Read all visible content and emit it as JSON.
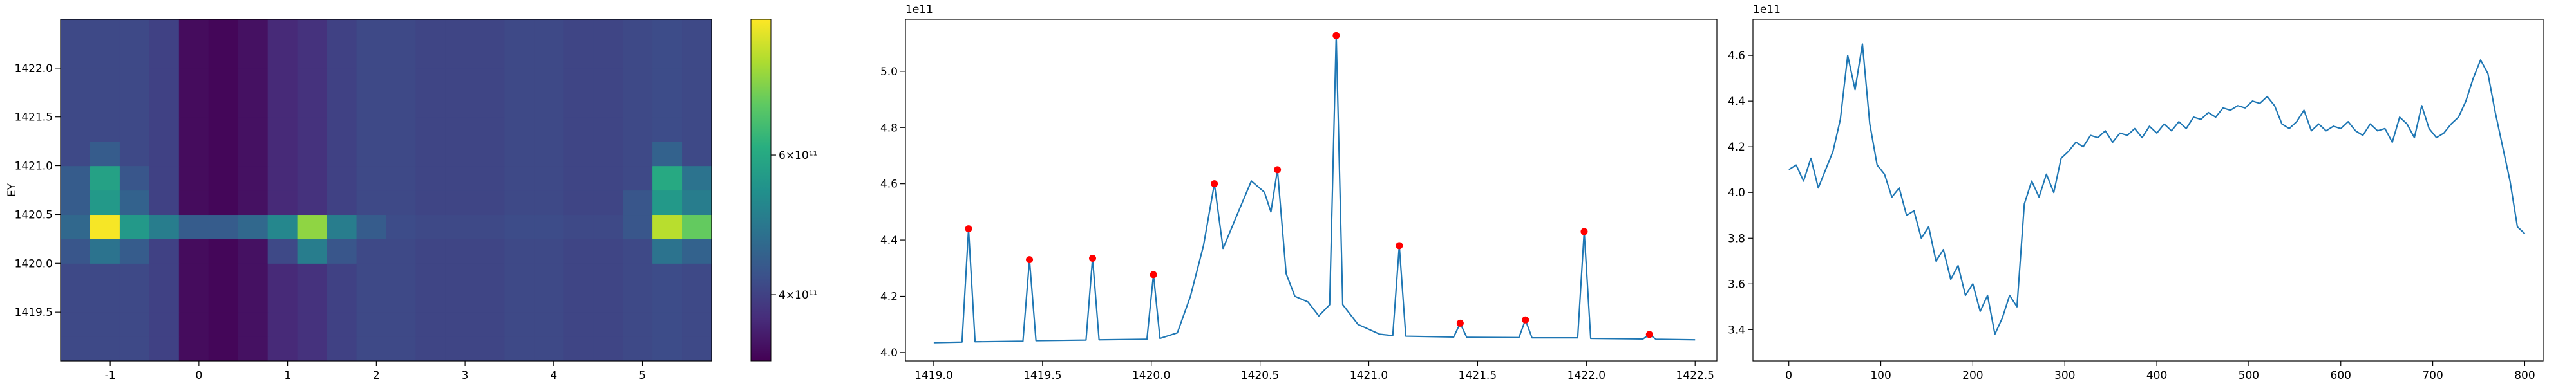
{
  "chart_data": [
    {
      "type": "heatmap",
      "ylabel": "EY",
      "colormap": "viridis",
      "xlim": [
        -1.56,
        5.78
      ],
      "ylim": [
        1419.0,
        1422.5
      ],
      "xticks": [
        -1,
        0,
        1,
        2,
        3,
        4,
        5
      ],
      "yticks": [
        1419.5,
        {
          "value": 1420,
          "label": "1420.0"
        },
        1420.5,
        {
          "value": 1421,
          "label": "1421.0"
        },
        1421.5,
        {
          "value": 1422,
          "label": "1422.0"
        }
      ],
      "colorbar": {
        "scale": "log",
        "lim": [
          330000000000.0,
          890000000000.0
        ],
        "ticks": [
          {
            "value": 400000000000.0,
            "label": "4×10¹¹"
          },
          {
            "value": 600000000000.0,
            "label": "6×10¹¹"
          }
        ]
      },
      "z": [
        [
          410000000000.0,
          410000000000.0,
          410000000000.0,
          400000000000.0,
          340000000000.0,
          335000000000.0,
          345000000000.0,
          370000000000.0,
          380000000000.0,
          400000000000.0,
          410000000000.0,
          410000000000.0,
          405000000000.0,
          405000000000.0,
          405000000000.0,
          410000000000.0,
          410000000000.0,
          405000000000.0,
          405000000000.0,
          410000000000.0,
          415000000000.0,
          410000000000.0
        ],
        [
          410000000000.0,
          410000000000.0,
          410000000000.0,
          400000000000.0,
          340000000000.0,
          335000000000.0,
          345000000000.0,
          370000000000.0,
          380000000000.0,
          400000000000.0,
          410000000000.0,
          410000000000.0,
          405000000000.0,
          405000000000.0,
          405000000000.0,
          410000000000.0,
          410000000000.0,
          405000000000.0,
          405000000000.0,
          410000000000.0,
          415000000000.0,
          410000000000.0
        ],
        [
          410000000000.0,
          410000000000.0,
          410000000000.0,
          400000000000.0,
          340000000000.0,
          335000000000.0,
          345000000000.0,
          370000000000.0,
          380000000000.0,
          400000000000.0,
          410000000000.0,
          410000000000.0,
          405000000000.0,
          405000000000.0,
          405000000000.0,
          410000000000.0,
          410000000000.0,
          405000000000.0,
          405000000000.0,
          410000000000.0,
          415000000000.0,
          410000000000.0
        ],
        [
          410000000000.0,
          410000000000.0,
          410000000000.0,
          400000000000.0,
          340000000000.0,
          335000000000.0,
          345000000000.0,
          370000000000.0,
          380000000000.0,
          400000000000.0,
          410000000000.0,
          410000000000.0,
          405000000000.0,
          405000000000.0,
          405000000000.0,
          410000000000.0,
          410000000000.0,
          405000000000.0,
          405000000000.0,
          410000000000.0,
          415000000000.0,
          410000000000.0
        ],
        [
          430000000000.0,
          480000000000.0,
          440000000000.0,
          400000000000.0,
          340000000000.0,
          335000000000.0,
          345000000000.0,
          410000000000.0,
          500000000000.0,
          430000000000.0,
          410000000000.0,
          410000000000.0,
          405000000000.0,
          405000000000.0,
          405000000000.0,
          410000000000.0,
          410000000000.0,
          405000000000.0,
          405000000000.0,
          410000000000.0,
          480000000000.0,
          450000000000.0
        ],
        [
          460000000000.0,
          880000000000.0,
          560000000000.0,
          500000000000.0,
          440000000000.0,
          440000000000.0,
          460000000000.0,
          520000000000.0,
          750000000000.0,
          500000000000.0,
          440000000000.0,
          415000000000.0,
          410000000000.0,
          410000000000.0,
          410000000000.0,
          415000000000.0,
          415000000000.0,
          410000000000.0,
          410000000000.0,
          430000000000.0,
          800000000000.0,
          700000000000.0
        ],
        [
          440000000000.0,
          560000000000.0,
          450000000000.0,
          400000000000.0,
          340000000000.0,
          335000000000.0,
          345000000000.0,
          370000000000.0,
          380000000000.0,
          400000000000.0,
          410000000000.0,
          410000000000.0,
          405000000000.0,
          405000000000.0,
          405000000000.0,
          410000000000.0,
          410000000000.0,
          405000000000.0,
          405000000000.0,
          430000000000.0,
          560000000000.0,
          500000000000.0
        ],
        [
          440000000000.0,
          580000000000.0,
          430000000000.0,
          400000000000.0,
          340000000000.0,
          335000000000.0,
          345000000000.0,
          370000000000.0,
          380000000000.0,
          400000000000.0,
          410000000000.0,
          410000000000.0,
          405000000000.0,
          405000000000.0,
          405000000000.0,
          410000000000.0,
          410000000000.0,
          405000000000.0,
          405000000000.0,
          410000000000.0,
          600000000000.0,
          480000000000.0
        ],
        [
          410000000000.0,
          440000000000.0,
          410000000000.0,
          400000000000.0,
          340000000000.0,
          335000000000.0,
          345000000000.0,
          370000000000.0,
          380000000000.0,
          400000000000.0,
          410000000000.0,
          410000000000.0,
          405000000000.0,
          405000000000.0,
          405000000000.0,
          410000000000.0,
          410000000000.0,
          405000000000.0,
          405000000000.0,
          410000000000.0,
          450000000000.0,
          410000000000.0
        ],
        [
          410000000000.0,
          410000000000.0,
          410000000000.0,
          400000000000.0,
          340000000000.0,
          335000000000.0,
          345000000000.0,
          370000000000.0,
          380000000000.0,
          400000000000.0,
          410000000000.0,
          410000000000.0,
          405000000000.0,
          405000000000.0,
          405000000000.0,
          410000000000.0,
          410000000000.0,
          405000000000.0,
          405000000000.0,
          410000000000.0,
          415000000000.0,
          410000000000.0
        ],
        [
          410000000000.0,
          410000000000.0,
          410000000000.0,
          400000000000.0,
          340000000000.0,
          335000000000.0,
          345000000000.0,
          370000000000.0,
          380000000000.0,
          400000000000.0,
          410000000000.0,
          410000000000.0,
          405000000000.0,
          405000000000.0,
          405000000000.0,
          410000000000.0,
          410000000000.0,
          405000000000.0,
          405000000000.0,
          410000000000.0,
          415000000000.0,
          410000000000.0
        ],
        [
          410000000000.0,
          410000000000.0,
          410000000000.0,
          400000000000.0,
          340000000000.0,
          335000000000.0,
          345000000000.0,
          370000000000.0,
          380000000000.0,
          400000000000.0,
          410000000000.0,
          410000000000.0,
          405000000000.0,
          405000000000.0,
          405000000000.0,
          410000000000.0,
          410000000000.0,
          405000000000.0,
          405000000000.0,
          410000000000.0,
          415000000000.0,
          410000000000.0
        ],
        [
          410000000000.0,
          410000000000.0,
          410000000000.0,
          400000000000.0,
          340000000000.0,
          335000000000.0,
          345000000000.0,
          370000000000.0,
          380000000000.0,
          400000000000.0,
          410000000000.0,
          410000000000.0,
          405000000000.0,
          405000000000.0,
          405000000000.0,
          410000000000.0,
          410000000000.0,
          405000000000.0,
          405000000000.0,
          410000000000.0,
          415000000000.0,
          410000000000.0
        ],
        [
          410000000000.0,
          410000000000.0,
          410000000000.0,
          400000000000.0,
          340000000000.0,
          335000000000.0,
          345000000000.0,
          370000000000.0,
          380000000000.0,
          400000000000.0,
          410000000000.0,
          410000000000.0,
          405000000000.0,
          405000000000.0,
          405000000000.0,
          410000000000.0,
          410000000000.0,
          405000000000.0,
          405000000000.0,
          410000000000.0,
          415000000000.0,
          410000000000.0
        ]
      ]
    },
    {
      "type": "line",
      "offset_label": "1e11",
      "xlim": [
        1418.87,
        1422.6
      ],
      "ylim": [
        3.97,
        5.185
      ],
      "xticks": [
        {
          "value": 1419,
          "label": "1419.0"
        },
        1419.5,
        {
          "value": 1420,
          "label": "1420.0"
        },
        1420.5,
        {
          "value": 1421,
          "label": "1421.0"
        },
        1421.5,
        {
          "value": 1422,
          "label": "1422.0"
        },
        1422.5
      ],
      "yticks": [
        {
          "value": 4,
          "label": "4.0"
        },
        4.2,
        4.4,
        4.6,
        4.8,
        {
          "value": 5,
          "label": "5.0"
        }
      ],
      "series": [
        {
          "color": "#1f77b4",
          "x": [
            1419.0,
            1419.13,
            1419.16,
            1419.19,
            1419.41,
            1419.44,
            1419.47,
            1419.7,
            1419.73,
            1419.76,
            1419.98,
            1420.01,
            1420.04,
            1420.12,
            1420.18,
            1420.24,
            1420.29,
            1420.33,
            1420.4,
            1420.46,
            1420.52,
            1420.55,
            1420.58,
            1420.62,
            1420.66,
            1420.72,
            1420.77,
            1420.82,
            1420.85,
            1420.88,
            1420.95,
            1421.05,
            1421.11,
            1421.14,
            1421.17,
            1421.39,
            1421.42,
            1421.45,
            1421.69,
            1421.72,
            1421.75,
            1421.96,
            1421.99,
            1422.02,
            1422.26,
            1422.29,
            1422.32,
            1422.5
          ],
          "values": [
            4.035,
            4.037,
            4.44,
            4.038,
            4.04,
            4.33,
            4.042,
            4.044,
            4.335,
            4.045,
            4.047,
            4.277,
            4.05,
            4.07,
            4.2,
            4.38,
            4.6,
            4.37,
            4.5,
            4.61,
            4.57,
            4.5,
            4.65,
            4.28,
            4.2,
            4.18,
            4.13,
            4.17,
            5.127,
            4.17,
            4.1,
            4.065,
            4.06,
            4.38,
            4.058,
            4.055,
            4.104,
            4.054,
            4.053,
            4.116,
            4.052,
            4.052,
            4.43,
            4.05,
            4.048,
            4.064,
            4.047,
            4.045
          ]
        },
        {
          "color": "red",
          "marker": "o",
          "x": [
            1419.16,
            1419.44,
            1419.73,
            1420.01,
            1420.29,
            1420.58,
            1420.85,
            1421.14,
            1421.42,
            1421.72,
            1421.99,
            1422.29
          ],
          "values": [
            4.44,
            4.33,
            4.335,
            4.277,
            4.6,
            4.65,
            5.127,
            4.38,
            4.104,
            4.116,
            4.43,
            4.064
          ]
        }
      ]
    },
    {
      "type": "line",
      "offset_label": "1e11",
      "xlim": [
        -39,
        820
      ],
      "ylim": [
        3.263,
        4.758
      ],
      "xticks": [
        0,
        100,
        200,
        300,
        400,
        500,
        600,
        700,
        800
      ],
      "yticks": [
        3.4,
        3.6,
        3.8,
        {
          "value": 4,
          "label": "4.0"
        },
        4.2,
        4.4,
        4.6
      ],
      "series": [
        {
          "color": "#1f77b4",
          "x": [
            0,
            8,
            16,
            24,
            32,
            40,
            48,
            56,
            64,
            72,
            80,
            88,
            96,
            104,
            112,
            120,
            128,
            136,
            144,
            152,
            160,
            168,
            176,
            184,
            192,
            200,
            208,
            216,
            224,
            232,
            240,
            248,
            256,
            264,
            272,
            280,
            288,
            296,
            304,
            312,
            320,
            328,
            336,
            344,
            352,
            360,
            368,
            376,
            384,
            392,
            400,
            408,
            416,
            424,
            432,
            440,
            448,
            456,
            464,
            472,
            480,
            488,
            496,
            504,
            512,
            520,
            528,
            536,
            544,
            552,
            560,
            568,
            576,
            584,
            592,
            600,
            608,
            616,
            624,
            632,
            640,
            648,
            656,
            664,
            672,
            680,
            688,
            696,
            704,
            712,
            720,
            728,
            736,
            744,
            752,
            760,
            768,
            776,
            784,
            792,
            800
          ],
          "values": [
            4.1,
            4.12,
            4.05,
            4.15,
            4.02,
            4.1,
            4.18,
            4.32,
            4.6,
            4.45,
            4.65,
            4.3,
            4.12,
            4.08,
            3.98,
            4.02,
            3.9,
            3.92,
            3.8,
            3.85,
            3.7,
            3.75,
            3.62,
            3.68,
            3.55,
            3.6,
            3.48,
            3.55,
            3.38,
            3.45,
            3.55,
            3.5,
            3.95,
            4.05,
            3.98,
            4.08,
            4.0,
            4.15,
            4.18,
            4.22,
            4.2,
            4.25,
            4.24,
            4.27,
            4.22,
            4.26,
            4.25,
            4.28,
            4.24,
            4.29,
            4.26,
            4.3,
            4.27,
            4.31,
            4.28,
            4.33,
            4.32,
            4.35,
            4.33,
            4.37,
            4.36,
            4.38,
            4.37,
            4.4,
            4.39,
            4.42,
            4.38,
            4.3,
            4.28,
            4.31,
            4.36,
            4.27,
            4.3,
            4.27,
            4.29,
            4.28,
            4.31,
            4.27,
            4.25,
            4.3,
            4.27,
            4.28,
            4.22,
            4.33,
            4.3,
            4.24,
            4.38,
            4.28,
            4.24,
            4.26,
            4.3,
            4.33,
            4.4,
            4.5,
            4.58,
            4.52,
            4.35,
            4.2,
            4.05,
            3.85,
            3.82
          ]
        }
      ]
    }
  ]
}
